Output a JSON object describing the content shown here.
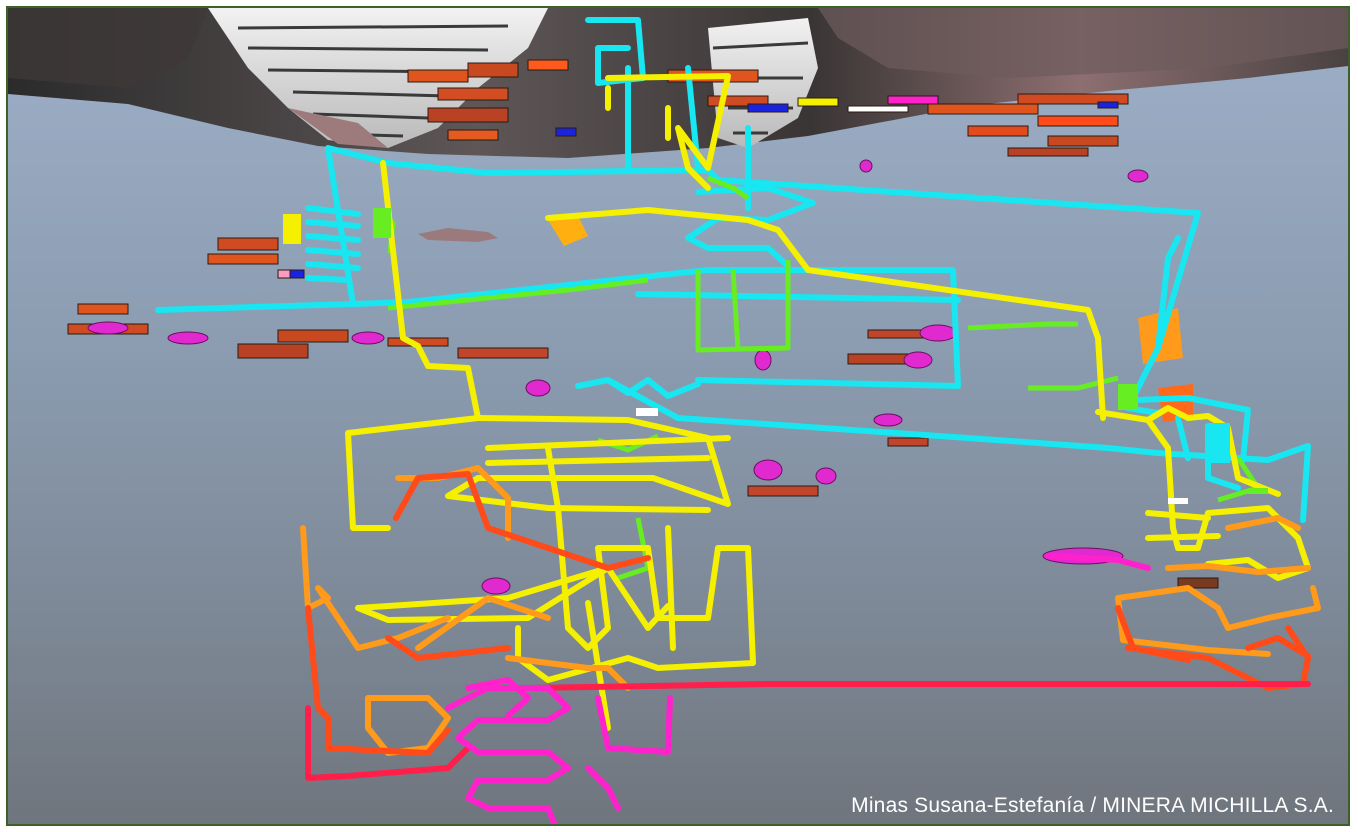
{
  "caption": "Minas Susana-Estefanía / MINERA MICHILLA S.A.",
  "scene": {
    "subject": "3D isometric mine workings model",
    "colors": {
      "cyan": "#18e6f0",
      "yellow": "#f4f000",
      "orange": "#ff9a1a",
      "red_orange": "#ff4a1a",
      "red": "#ff1f4a",
      "magenta": "#ff22cc",
      "green": "#66ee22",
      "ore_brown": "#c0452a",
      "terrain_dark": "#2a2a2a",
      "terrain_rose": "#9a7a7c",
      "sky": "#9eb0c8"
    }
  }
}
